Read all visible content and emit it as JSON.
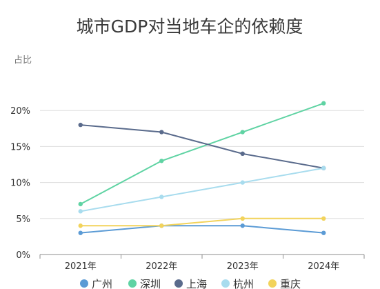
{
  "chart_data": {
    "type": "line",
    "title": "城市GDP对当地车企的依赖度",
    "ylabel": "占比",
    "xlabel": "",
    "categories": [
      "2021年",
      "2022年",
      "2023年",
      "2024年"
    ],
    "yticks": [
      "0%",
      "5%",
      "10%",
      "15%",
      "20%"
    ],
    "ylim": [
      0,
      25
    ],
    "grid": true,
    "legend_position": "bottom",
    "series": [
      {
        "name": "广州",
        "color": "#5b9bd5",
        "values": [
          3,
          4,
          4,
          3
        ]
      },
      {
        "name": "深圳",
        "color": "#5fd3a3",
        "values": [
          7,
          13,
          17,
          21
        ]
      },
      {
        "name": "上海",
        "color": "#5a6b8c",
        "values": [
          18,
          17,
          14,
          12
        ]
      },
      {
        "name": "杭州",
        "color": "#a8dcee",
        "values": [
          6,
          8,
          10,
          12
        ]
      },
      {
        "name": "重庆",
        "color": "#f2d35b",
        "values": [
          4,
          4,
          5,
          5
        ]
      }
    ]
  }
}
